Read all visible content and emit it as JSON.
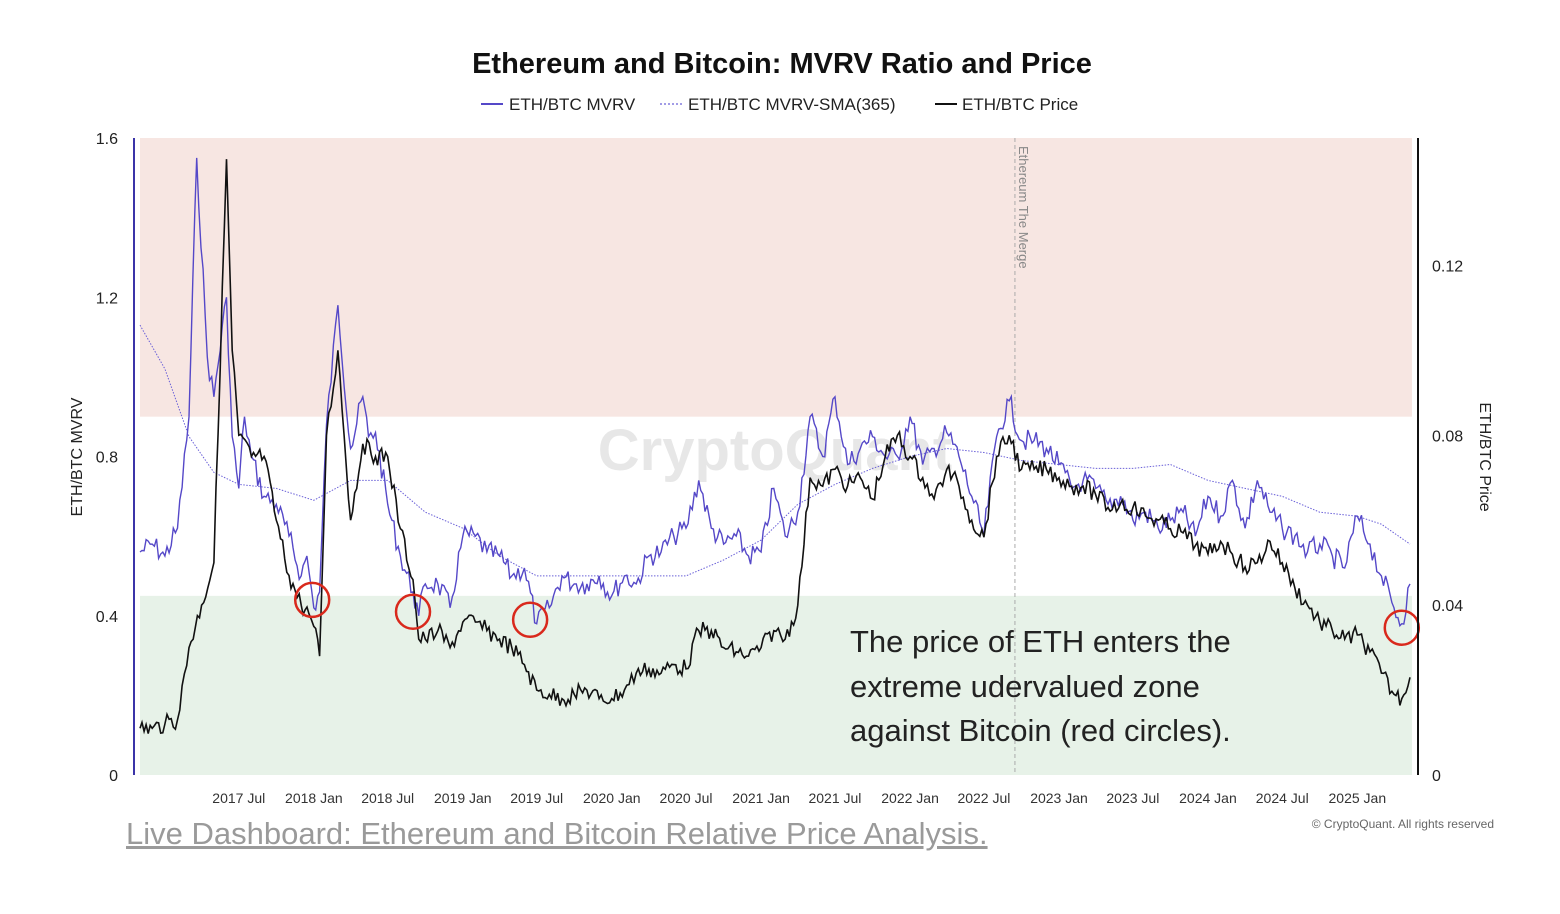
{
  "chart_data": {
    "type": "line",
    "title": "Ethereum and Bitcoin: MVRV Ratio and Price",
    "legend": [
      {
        "name": "ETH/BTC MVRV",
        "color": "#5548c8",
        "style": "solid"
      },
      {
        "name": "ETH/BTC MVRV-SMA(365)",
        "color": "#6a60d8",
        "style": "dotted"
      },
      {
        "name": "ETH/BTC Price",
        "color": "#111111",
        "style": "solid"
      }
    ],
    "legend_placement": "top-center",
    "ylabel_left": "ETH/BTC MVRV",
    "ylabel_right": "ETH/BTC Price",
    "ylim_left": [
      0,
      1.6
    ],
    "ylim_right": [
      0,
      0.15
    ],
    "yticks_left": [
      "0",
      "0.4",
      "0.8",
      "1.2",
      "1.6"
    ],
    "yticks_left_values": [
      0,
      0.4,
      0.8,
      1.2,
      1.6
    ],
    "yticks_right": [
      "0",
      "0.04",
      "0.08",
      "0.12"
    ],
    "yticks_right_values": [
      0,
      0.04,
      0.08,
      0.12
    ],
    "x_range": [
      "2016-11-01",
      "2025-05-15"
    ],
    "xticks": [
      {
        "label": "2017 Jul",
        "date": "2017-07-01"
      },
      {
        "label": "2018 Jan",
        "date": "2018-01-01"
      },
      {
        "label": "2018 Jul",
        "date": "2018-07-01"
      },
      {
        "label": "2019 Jan",
        "date": "2019-01-01"
      },
      {
        "label": "2019 Jul",
        "date": "2019-07-01"
      },
      {
        "label": "2020 Jan",
        "date": "2020-01-01"
      },
      {
        "label": "2020 Jul",
        "date": "2020-07-01"
      },
      {
        "label": "2021 Jan",
        "date": "2021-01-01"
      },
      {
        "label": "2021 Jul",
        "date": "2021-07-01"
      },
      {
        "label": "2022 Jan",
        "date": "2022-01-01"
      },
      {
        "label": "2022 Jul",
        "date": "2022-07-01"
      },
      {
        "label": "2023 Jan",
        "date": "2023-01-01"
      },
      {
        "label": "2023 Jul",
        "date": "2023-07-01"
      },
      {
        "label": "2024 Jan",
        "date": "2024-01-01"
      },
      {
        "label": "2024 Jul",
        "date": "2024-07-01"
      },
      {
        "label": "2025 Jan",
        "date": "2025-01-01"
      }
    ],
    "zones": [
      {
        "name": "overvalued",
        "from": 0.9,
        "to": 1.6,
        "color": "#f7e6e2"
      },
      {
        "name": "undervalued",
        "from": 0,
        "to": 0.45,
        "color": "#e7f2e8"
      }
    ],
    "vertical_marker": {
      "label": "Ethereum The Merge",
      "date": "2022-09-15"
    },
    "series": [
      {
        "name": "ETH/BTC MVRV",
        "axis": "left",
        "color": "#5548c8",
        "x": [
          "2016-11-01",
          "2016-12-01",
          "2017-01-01",
          "2017-02-01",
          "2017-03-01",
          "2017-03-20",
          "2017-04-15",
          "2017-05-01",
          "2017-06-01",
          "2017-06-15",
          "2017-07-01",
          "2017-07-15",
          "2017-08-01",
          "2017-09-01",
          "2017-10-01",
          "2017-11-01",
          "2017-12-01",
          "2017-12-15",
          "2018-01-01",
          "2018-01-15",
          "2018-02-01",
          "2018-03-01",
          "2018-04-01",
          "2018-05-01",
          "2018-05-15",
          "2018-06-01",
          "2018-07-01",
          "2018-08-01",
          "2018-09-01",
          "2018-09-15",
          "2018-10-01",
          "2018-11-01",
          "2018-12-01",
          "2019-01-01",
          "2019-02-01",
          "2019-03-01",
          "2019-04-01",
          "2019-05-01",
          "2019-06-01",
          "2019-07-01",
          "2019-08-01",
          "2019-09-01",
          "2019-10-01",
          "2019-11-01",
          "2019-12-01",
          "2020-01-01",
          "2020-02-01",
          "2020-03-01",
          "2020-04-01",
          "2020-05-01",
          "2020-06-01",
          "2020-07-01",
          "2020-08-01",
          "2020-09-01",
          "2020-10-01",
          "2020-11-01",
          "2020-12-01",
          "2021-01-01",
          "2021-02-01",
          "2021-03-01",
          "2021-04-01",
          "2021-05-01",
          "2021-06-01",
          "2021-07-01",
          "2021-08-01",
          "2021-09-01",
          "2021-10-01",
          "2021-11-01",
          "2021-12-01",
          "2022-01-01",
          "2022-02-01",
          "2022-03-01",
          "2022-04-01",
          "2022-05-01",
          "2022-06-01",
          "2022-07-01",
          "2022-08-01",
          "2022-09-01",
          "2022-10-01",
          "2022-11-01",
          "2022-12-01",
          "2023-01-01",
          "2023-02-01",
          "2023-03-01",
          "2023-04-01",
          "2023-05-01",
          "2023-06-01",
          "2023-07-01",
          "2023-08-01",
          "2023-09-01",
          "2023-10-01",
          "2023-11-01",
          "2023-12-01",
          "2024-01-01",
          "2024-02-01",
          "2024-03-01",
          "2024-04-01",
          "2024-05-01",
          "2024-06-01",
          "2024-07-01",
          "2024-08-01",
          "2024-09-01",
          "2024-10-01",
          "2024-11-01",
          "2024-12-01",
          "2025-01-01",
          "2025-02-01",
          "2025-03-01",
          "2025-04-01",
          "2025-04-20",
          "2025-05-10"
        ],
        "values": [
          0.56,
          0.58,
          0.55,
          0.62,
          0.9,
          1.55,
          1.05,
          0.95,
          1.2,
          0.85,
          0.72,
          0.9,
          0.8,
          0.7,
          0.68,
          0.6,
          0.5,
          0.55,
          0.42,
          0.46,
          0.88,
          1.18,
          0.82,
          0.95,
          0.85,
          0.86,
          0.68,
          0.55,
          0.46,
          0.4,
          0.48,
          0.48,
          0.42,
          0.6,
          0.6,
          0.56,
          0.55,
          0.5,
          0.52,
          0.38,
          0.42,
          0.5,
          0.48,
          0.48,
          0.5,
          0.45,
          0.5,
          0.48,
          0.55,
          0.56,
          0.6,
          0.62,
          0.74,
          0.62,
          0.58,
          0.6,
          0.55,
          0.56,
          0.72,
          0.6,
          0.66,
          0.9,
          0.8,
          0.95,
          0.78,
          0.82,
          0.85,
          0.8,
          0.8,
          0.9,
          0.78,
          0.82,
          0.86,
          0.8,
          0.7,
          0.6,
          0.85,
          0.94,
          0.84,
          0.84,
          0.82,
          0.78,
          0.72,
          0.74,
          0.72,
          0.68,
          0.7,
          0.64,
          0.66,
          0.62,
          0.64,
          0.66,
          0.6,
          0.7,
          0.65,
          0.74,
          0.62,
          0.74,
          0.66,
          0.62,
          0.6,
          0.56,
          0.58,
          0.55,
          0.52,
          0.65,
          0.58,
          0.5,
          0.42,
          0.38,
          0.48
        ]
      },
      {
        "name": "ETH/BTC MVRV-SMA(365)",
        "axis": "left",
        "color": "#6a60d8",
        "x": [
          "2016-11-01",
          "2017-01-01",
          "2017-03-01",
          "2017-05-01",
          "2017-07-01",
          "2017-10-01",
          "2018-01-01",
          "2018-04-01",
          "2018-07-01",
          "2018-10-01",
          "2019-01-01",
          "2019-04-01",
          "2019-07-01",
          "2019-10-01",
          "2020-01-01",
          "2020-04-01",
          "2020-07-01",
          "2020-10-01",
          "2021-01-01",
          "2021-04-01",
          "2021-07-01",
          "2021-10-01",
          "2022-01-01",
          "2022-04-01",
          "2022-07-01",
          "2022-10-01",
          "2023-01-01",
          "2023-04-01",
          "2023-07-01",
          "2023-10-01",
          "2024-01-01",
          "2024-04-01",
          "2024-07-01",
          "2024-10-01",
          "2025-01-01",
          "2025-03-01",
          "2025-05-10"
        ],
        "values": [
          1.13,
          1.02,
          0.85,
          0.76,
          0.73,
          0.72,
          0.69,
          0.74,
          0.74,
          0.66,
          0.62,
          0.55,
          0.5,
          0.5,
          0.5,
          0.5,
          0.5,
          0.54,
          0.59,
          0.68,
          0.73,
          0.77,
          0.8,
          0.82,
          0.81,
          0.79,
          0.78,
          0.77,
          0.77,
          0.78,
          0.74,
          0.72,
          0.7,
          0.66,
          0.65,
          0.63,
          0.58
        ]
      },
      {
        "name": "ETH/BTC Price",
        "axis": "right",
        "color": "#111111",
        "x": [
          "2016-11-01",
          "2016-12-01",
          "2017-01-01",
          "2017-02-01",
          "2017-03-01",
          "2017-04-01",
          "2017-05-01",
          "2017-06-01",
          "2017-06-15",
          "2017-07-01",
          "2017-08-01",
          "2017-09-01",
          "2017-10-01",
          "2017-11-01",
          "2017-12-01",
          "2017-12-20",
          "2018-01-01",
          "2018-01-15",
          "2018-02-01",
          "2018-03-01",
          "2018-04-01",
          "2018-05-01",
          "2018-06-01",
          "2018-07-01",
          "2018-08-01",
          "2018-09-01",
          "2018-09-15",
          "2018-10-01",
          "2018-11-01",
          "2018-12-01",
          "2019-01-01",
          "2019-02-01",
          "2019-03-01",
          "2019-04-01",
          "2019-05-01",
          "2019-06-01",
          "2019-07-01",
          "2019-08-01",
          "2019-09-01",
          "2019-10-01",
          "2019-11-01",
          "2019-12-01",
          "2020-01-01",
          "2020-02-01",
          "2020-03-01",
          "2020-04-01",
          "2020-05-01",
          "2020-06-01",
          "2020-07-01",
          "2020-08-01",
          "2020-09-01",
          "2020-10-01",
          "2020-11-01",
          "2020-12-01",
          "2021-01-01",
          "2021-02-01",
          "2021-03-01",
          "2021-04-01",
          "2021-05-01",
          "2021-06-01",
          "2021-07-01",
          "2021-08-01",
          "2021-09-01",
          "2021-10-01",
          "2021-11-01",
          "2021-12-01",
          "2022-01-01",
          "2022-02-01",
          "2022-03-01",
          "2022-04-01",
          "2022-05-01",
          "2022-06-01",
          "2022-07-01",
          "2022-08-01",
          "2022-09-01",
          "2022-10-01",
          "2022-11-01",
          "2022-12-01",
          "2023-01-01",
          "2023-02-01",
          "2023-03-01",
          "2023-04-01",
          "2023-05-01",
          "2023-06-01",
          "2023-07-01",
          "2023-08-01",
          "2023-09-01",
          "2023-10-01",
          "2023-11-01",
          "2023-12-01",
          "2024-01-01",
          "2024-02-01",
          "2024-03-01",
          "2024-04-01",
          "2024-05-01",
          "2024-06-01",
          "2024-07-01",
          "2024-08-01",
          "2024-09-01",
          "2024-10-01",
          "2024-11-01",
          "2024-12-01",
          "2025-01-01",
          "2025-02-01",
          "2025-03-01",
          "2025-04-01",
          "2025-04-20",
          "2025-05-10"
        ],
        "values": [
          0.011,
          0.011,
          0.012,
          0.013,
          0.03,
          0.04,
          0.05,
          0.145,
          0.1,
          0.08,
          0.075,
          0.075,
          0.06,
          0.047,
          0.04,
          0.038,
          0.035,
          0.028,
          0.08,
          0.1,
          0.06,
          0.078,
          0.075,
          0.075,
          0.058,
          0.046,
          0.032,
          0.032,
          0.034,
          0.03,
          0.036,
          0.036,
          0.034,
          0.032,
          0.03,
          0.026,
          0.02,
          0.019,
          0.018,
          0.019,
          0.02,
          0.018,
          0.018,
          0.02,
          0.024,
          0.025,
          0.024,
          0.026,
          0.025,
          0.034,
          0.034,
          0.03,
          0.029,
          0.028,
          0.03,
          0.034,
          0.032,
          0.04,
          0.07,
          0.068,
          0.072,
          0.068,
          0.07,
          0.065,
          0.075,
          0.08,
          0.075,
          0.07,
          0.065,
          0.072,
          0.068,
          0.06,
          0.056,
          0.075,
          0.08,
          0.072,
          0.072,
          0.072,
          0.07,
          0.068,
          0.068,
          0.066,
          0.063,
          0.064,
          0.063,
          0.061,
          0.06,
          0.058,
          0.057,
          0.054,
          0.052,
          0.055,
          0.052,
          0.049,
          0.05,
          0.055,
          0.05,
          0.044,
          0.04,
          0.036,
          0.034,
          0.032,
          0.033,
          0.029,
          0.024,
          0.019,
          0.018,
          0.023
        ]
      }
    ],
    "grid": false
  },
  "annotation": {
    "line1": "The price of  ETH enters the",
    "line2": "extreme udervalued zone",
    "line3": "against Bitcoin (red circles)."
  },
  "watermark": "CryptoQuant",
  "copyright": "© CryptoQuant. All rights reserved",
  "link_text": "Live Dashboard: Ethereum and Bitcoin Relative Price Analysis.",
  "highlight_circles": [
    {
      "date": "2017-12-28",
      "mvrv": 0.44
    },
    {
      "date": "2018-09-01",
      "mvrv": 0.41
    },
    {
      "date": "2019-06-15",
      "mvrv": 0.39
    },
    {
      "date": "2025-04-20",
      "mvrv": 0.37
    }
  ],
  "colors": {
    "overvalued_zone": "#f7e6e2",
    "undervalued_zone": "#e7f2e8",
    "circle": "#d9291c",
    "axis_left": "#3b34a8",
    "axis_right": "#111111"
  }
}
